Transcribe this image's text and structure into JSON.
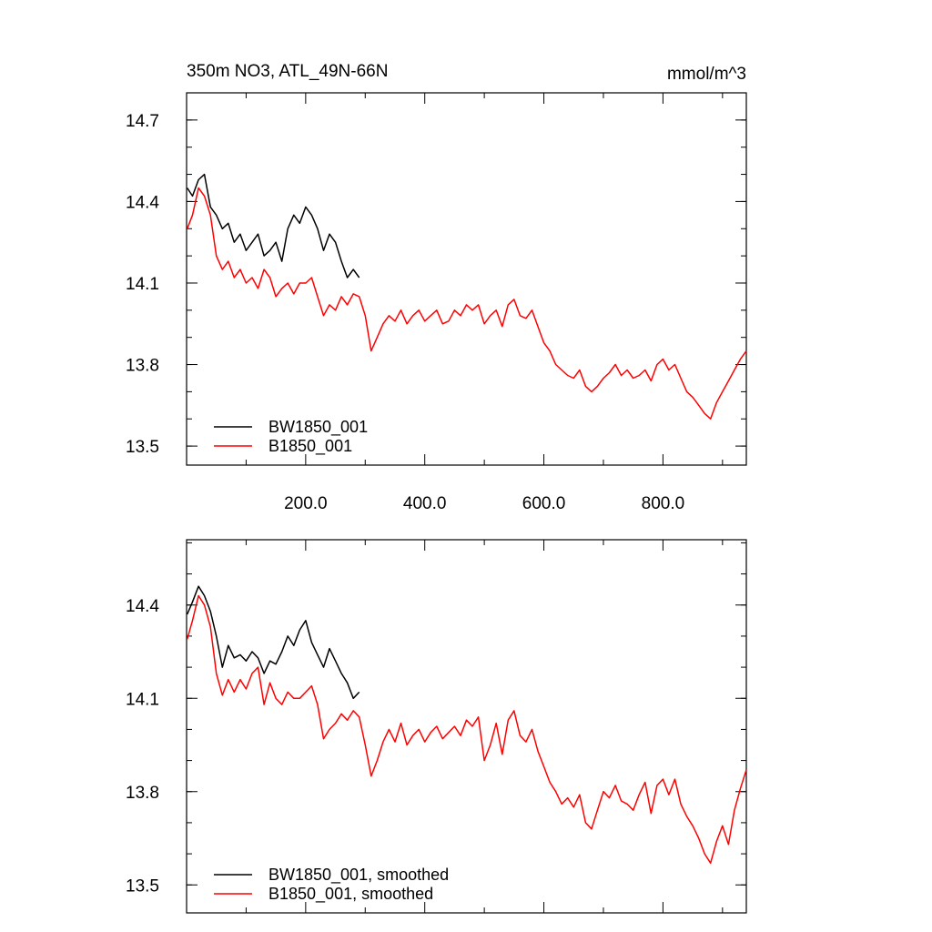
{
  "figure": {
    "title": "350m NO3, ATL_49N-66N",
    "units": "mmol/m^3"
  },
  "chart_data": [
    {
      "type": "line",
      "title": "350m NO3, ATL_49N-66N",
      "units": "mmol/m^3",
      "xlim": [
        0,
        940
      ],
      "ylim": [
        13.43,
        14.8
      ],
      "x_ticks": [
        200,
        400,
        600,
        800
      ],
      "x_tick_labels": [
        "200.0",
        "400.0",
        "600.0",
        "800.0"
      ],
      "y_ticks": [
        13.5,
        13.8,
        14.1,
        14.4,
        14.7
      ],
      "y_tick_labels": [
        "13.5",
        "13.8",
        "14.1",
        "14.4",
        "14.7"
      ],
      "grid": false,
      "legend_position": "bottom-left",
      "series": [
        {
          "name": "BW1850_001",
          "color": "#000000",
          "x": [
            1,
            10,
            20,
            30,
            40,
            50,
            60,
            70,
            80,
            90,
            100,
            110,
            120,
            130,
            140,
            150,
            160,
            170,
            180,
            190,
            200,
            210,
            220,
            230,
            240,
            250,
            260,
            270,
            280,
            290
          ],
          "y": [
            14.45,
            14.42,
            14.48,
            14.5,
            14.38,
            14.35,
            14.3,
            14.32,
            14.25,
            14.28,
            14.22,
            14.25,
            14.28,
            14.2,
            14.22,
            14.25,
            14.18,
            14.3,
            14.35,
            14.32,
            14.38,
            14.35,
            14.3,
            14.22,
            14.28,
            14.25,
            14.18,
            14.12,
            14.15,
            14.12
          ]
        },
        {
          "name": "B1850_001",
          "color": "#ff0000",
          "x": [
            1,
            10,
            20,
            30,
            40,
            50,
            60,
            70,
            80,
            90,
            100,
            110,
            120,
            130,
            140,
            150,
            160,
            170,
            180,
            190,
            200,
            210,
            220,
            230,
            240,
            250,
            260,
            270,
            280,
            290,
            300,
            310,
            320,
            330,
            340,
            350,
            360,
            370,
            380,
            390,
            400,
            410,
            420,
            430,
            440,
            450,
            460,
            470,
            480,
            490,
            500,
            510,
            520,
            530,
            540,
            550,
            560,
            570,
            580,
            590,
            600,
            610,
            620,
            630,
            640,
            650,
            660,
            670,
            680,
            690,
            700,
            710,
            720,
            730,
            740,
            750,
            760,
            770,
            780,
            790,
            800,
            810,
            820,
            830,
            840,
            850,
            860,
            870,
            880,
            890,
            900,
            910,
            920,
            930,
            940
          ],
          "y": [
            14.3,
            14.35,
            14.45,
            14.42,
            14.35,
            14.2,
            14.15,
            14.18,
            14.12,
            14.15,
            14.1,
            14.12,
            14.08,
            14.15,
            14.12,
            14.05,
            14.08,
            14.1,
            14.06,
            14.1,
            14.1,
            14.12,
            14.05,
            13.98,
            14.02,
            14.0,
            14.05,
            14.02,
            14.06,
            14.05,
            13.98,
            13.85,
            13.9,
            13.95,
            13.98,
            13.96,
            14.0,
            13.95,
            13.98,
            14.0,
            13.96,
            13.98,
            14.0,
            13.95,
            13.96,
            14.0,
            13.98,
            14.02,
            14.0,
            14.02,
            13.95,
            13.98,
            14.0,
            13.94,
            14.02,
            14.04,
            13.98,
            13.97,
            14.0,
            13.94,
            13.88,
            13.85,
            13.8,
            13.78,
            13.76,
            13.75,
            13.78,
            13.72,
            13.7,
            13.72,
            13.75,
            13.77,
            13.8,
            13.76,
            13.78,
            13.75,
            13.76,
            13.78,
            13.74,
            13.8,
            13.82,
            13.78,
            13.8,
            13.75,
            13.7,
            13.68,
            13.65,
            13.62,
            13.6,
            13.66,
            13.7,
            13.74,
            13.78,
            13.82,
            13.85
          ]
        }
      ]
    },
    {
      "type": "line",
      "xlim": [
        0,
        940
      ],
      "ylim": [
        13.41,
        14.61
      ],
      "x_ticks": [
        200,
        400,
        600,
        800
      ],
      "x_tick_labels": [],
      "y_ticks": [
        13.5,
        13.8,
        14.1,
        14.4
      ],
      "y_tick_labels": [
        "13.5",
        "13.8",
        "14.1",
        "14.4"
      ],
      "grid": false,
      "legend_position": "bottom-left",
      "series": [
        {
          "name": "BW1850_001, smoothed",
          "color": "#000000",
          "x": [
            1,
            10,
            20,
            30,
            40,
            50,
            60,
            70,
            80,
            90,
            100,
            110,
            120,
            130,
            140,
            150,
            160,
            170,
            180,
            190,
            200,
            210,
            220,
            230,
            240,
            250,
            260,
            270,
            280,
            290
          ],
          "y": [
            14.37,
            14.41,
            14.46,
            14.43,
            14.38,
            14.3,
            14.2,
            14.27,
            14.23,
            14.24,
            14.22,
            14.25,
            14.23,
            14.18,
            14.22,
            14.21,
            14.25,
            14.3,
            14.27,
            14.32,
            14.35,
            14.28,
            14.24,
            14.2,
            14.26,
            14.22,
            14.18,
            14.15,
            14.1,
            14.12
          ]
        },
        {
          "name": "B1850_001, smoothed",
          "color": "#ff0000",
          "x": [
            1,
            10,
            20,
            30,
            40,
            50,
            60,
            70,
            80,
            90,
            100,
            110,
            120,
            130,
            140,
            150,
            160,
            170,
            180,
            190,
            200,
            210,
            220,
            230,
            240,
            250,
            260,
            270,
            280,
            290,
            300,
            310,
            320,
            330,
            340,
            350,
            360,
            370,
            380,
            390,
            400,
            410,
            420,
            430,
            440,
            450,
            460,
            470,
            480,
            490,
            500,
            510,
            520,
            530,
            540,
            550,
            560,
            570,
            580,
            590,
            600,
            610,
            620,
            630,
            640,
            650,
            660,
            670,
            680,
            690,
            700,
            710,
            720,
            730,
            740,
            750,
            760,
            770,
            780,
            790,
            800,
            810,
            820,
            830,
            840,
            850,
            860,
            870,
            880,
            890,
            900,
            910,
            920,
            930,
            940
          ],
          "y": [
            14.29,
            14.35,
            14.43,
            14.4,
            14.33,
            14.18,
            14.11,
            14.16,
            14.12,
            14.16,
            14.13,
            14.18,
            14.2,
            14.08,
            14.15,
            14.1,
            14.08,
            14.12,
            14.1,
            14.1,
            14.12,
            14.14,
            14.08,
            13.97,
            14.0,
            14.02,
            14.05,
            14.03,
            14.06,
            14.04,
            13.95,
            13.85,
            13.9,
            13.96,
            14.0,
            13.96,
            14.02,
            13.95,
            13.98,
            14.0,
            13.96,
            13.99,
            14.01,
            13.97,
            13.99,
            14.01,
            13.98,
            14.03,
            14.01,
            14.04,
            13.9,
            13.95,
            14.02,
            13.92,
            14.03,
            14.06,
            13.98,
            13.96,
            14.0,
            13.93,
            13.88,
            13.83,
            13.8,
            13.76,
            13.78,
            13.75,
            13.79,
            13.7,
            13.68,
            13.74,
            13.8,
            13.78,
            13.82,
            13.77,
            13.76,
            13.74,
            13.79,
            13.83,
            13.73,
            13.82,
            13.84,
            13.79,
            13.84,
            13.76,
            13.72,
            13.69,
            13.65,
            13.6,
            13.57,
            13.64,
            13.69,
            13.63,
            13.74,
            13.81,
            13.87
          ]
        }
      ]
    }
  ]
}
